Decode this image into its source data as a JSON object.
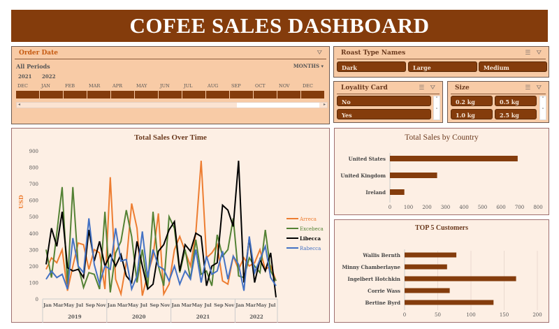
{
  "title": "COFEE SALES DASHBOARD",
  "order_date": {
    "label": "Order Date",
    "period": "All Periods",
    "granularity": "MONTHS",
    "years": [
      "2021",
      "2022"
    ],
    "months": [
      "DEC",
      "JAN",
      "FEB",
      "MAR",
      "APR",
      "MAY",
      "JUN",
      "JUL",
      "AUG",
      "SEP",
      "OCT",
      "NOV",
      "DEC"
    ]
  },
  "roast": {
    "label": "Roast Type Names",
    "items": [
      "Dark",
      "Large",
      "Medium"
    ]
  },
  "loyalty": {
    "label": "Loyality Card",
    "items": [
      "No",
      "Yes"
    ]
  },
  "size": {
    "label": "Size",
    "items": [
      "0.2 kg",
      "0.5 kg",
      "1.0 kg",
      "2.5 kg"
    ]
  },
  "colors": {
    "brand": "#843c0c",
    "slicer_bg": "#f8cba6",
    "panel_bg": "#fdefe4"
  },
  "chart_data": [
    {
      "type": "line",
      "title": "Total Sales Over Time",
      "ylabel": "USD",
      "ylim": [
        0,
        900
      ],
      "yticks": [
        0,
        100,
        200,
        300,
        400,
        500,
        600,
        700,
        800,
        900
      ],
      "x_month_labels": [
        "Jan",
        "Mar",
        "May",
        "Jul",
        "Sep",
        "Nov"
      ],
      "years": [
        "2019",
        "2020",
        "2021",
        "2022"
      ],
      "legend": "right",
      "series": [
        {
          "name": "Arreca",
          "color": "#ed7d31",
          "values": [
            180,
            250,
            220,
            300,
            50,
            200,
            340,
            330,
            180,
            300,
            280,
            60,
            740,
            120,
            30,
            220,
            580,
            430,
            20,
            150,
            260,
            520,
            30,
            90,
            300,
            380,
            290,
            200,
            400,
            840,
            250,
            280,
            330,
            110,
            90,
            260,
            180,
            250,
            200,
            220,
            300,
            180,
            200,
            110
          ]
        },
        {
          "name": "Excebeca",
          "color": "#548235",
          "values": [
            300,
            130,
            400,
            680,
            90,
            680,
            200,
            70,
            160,
            150,
            60,
            530,
            40,
            280,
            350,
            540,
            380,
            100,
            300,
            70,
            530,
            200,
            80,
            500,
            430,
            160,
            300,
            120,
            360,
            150,
            170,
            80,
            390,
            260,
            300,
            490,
            140,
            130,
            250,
            200,
            160,
            420,
            170,
            110
          ]
        },
        {
          "name": "Libecca",
          "color": "#000000",
          "values": [
            210,
            430,
            320,
            530,
            190,
            170,
            180,
            130,
            420,
            230,
            350,
            200,
            270,
            200,
            270,
            140,
            100,
            350,
            200,
            60,
            90,
            290,
            330,
            420,
            470,
            170,
            330,
            290,
            400,
            380,
            80,
            200,
            220,
            570,
            540,
            440,
            840,
            100,
            370,
            100,
            240,
            170,
            280,
            10
          ]
        },
        {
          "name": "Rabecca",
          "color": "#4472c4",
          "values": [
            120,
            170,
            130,
            150,
            60,
            370,
            200,
            160,
            490,
            210,
            90,
            200,
            180,
            430,
            230,
            240,
            60,
            140,
            410,
            130,
            300,
            200,
            180,
            110,
            200,
            90,
            170,
            120,
            300,
            100,
            260,
            150,
            170,
            290,
            120,
            260,
            210,
            50,
            380,
            160,
            240,
            320,
            130,
            80
          ]
        }
      ]
    },
    {
      "type": "bar",
      "title": "Total Sales by Country",
      "categories": [
        "United States",
        "United Kingdom",
        "Ireland"
      ],
      "values": [
        690,
        255,
        78
      ],
      "xlim": [
        0,
        800
      ],
      "xticks": [
        0,
        100,
        200,
        300,
        400,
        500,
        600,
        700,
        800
      ]
    },
    {
      "type": "bar",
      "title": "TOP 5 Customers",
      "categories": [
        "Wallis Bernth",
        "Minny Chamberlayne",
        "Ingelbert Hotchkin",
        "Corrie Wass",
        "Bertine Byrd"
      ],
      "values": [
        78,
        64,
        168,
        68,
        134
      ],
      "xlim": [
        0,
        200
      ],
      "xticks": [
        0,
        50,
        100,
        150,
        200
      ]
    }
  ]
}
